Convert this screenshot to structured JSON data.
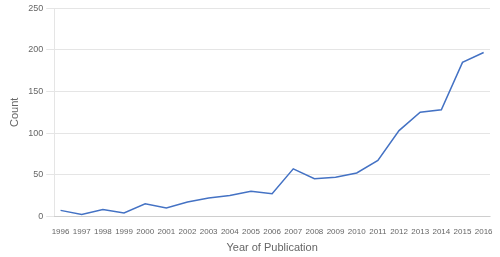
{
  "chart_data": {
    "type": "line",
    "x": [
      1996,
      1997,
      1998,
      1999,
      2000,
      2001,
      2002,
      2003,
      2004,
      2005,
      2006,
      2007,
      2008,
      2009,
      2010,
      2011,
      2012,
      2013,
      2014,
      2015,
      2016
    ],
    "values": [
      7,
      2,
      8,
      4,
      15,
      10,
      17,
      22,
      25,
      30,
      27,
      57,
      45,
      47,
      52,
      67,
      103,
      125,
      128,
      185,
      197
    ],
    "color": "#4472C4",
    "xlabel": "Year of Publication",
    "ylabel": "Count",
    "xlim": [
      1995.7,
      2016.3
    ],
    "xticks": [
      1996,
      1997,
      1998,
      1999,
      2000,
      2001,
      2002,
      2003,
      2004,
      2005,
      2006,
      2007,
      2008,
      2009,
      2010,
      2011,
      2012,
      2013,
      2014,
      2015,
      2016
    ],
    "ylim": [
      0,
      250
    ],
    "yticks": [
      0,
      50,
      100,
      150,
      200,
      250
    ],
    "grid": true
  }
}
